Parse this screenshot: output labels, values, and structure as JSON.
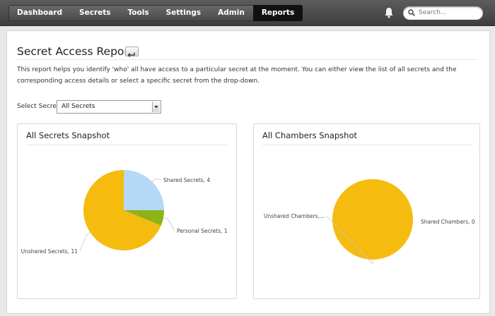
{
  "nav": {
    "items": [
      {
        "label": "Dashboard",
        "active": false
      },
      {
        "label": "Secrets",
        "active": false
      },
      {
        "label": "Tools",
        "active": false
      },
      {
        "label": "Settings",
        "active": false
      },
      {
        "label": "Admin",
        "active": false
      },
      {
        "label": "Reports",
        "active": true
      }
    ],
    "notifications_icon": "bell-icon",
    "search_placeholder": "Search..."
  },
  "page": {
    "title": "Secret Access Report",
    "back_icon": "back-arrow-icon",
    "description": "This report helps you identify 'who' all have access to a particular secret at the moment. You can either view the list of all secrets and the corresponding access details or select a specific secret from the drop-down.",
    "select_label": "Select Secret",
    "select_value": "All Secrets"
  },
  "panels": {
    "secrets_title": "All Secrets Snapshot",
    "chambers_title": "All Chambers Snapshot"
  },
  "colors": {
    "shared": "#b5d8f7",
    "personal": "#8db317",
    "unshared": "#f5bb0f",
    "nav_active": "#111111"
  },
  "chart_data": [
    {
      "type": "pie",
      "title": "All Secrets Snapshot",
      "slices": [
        {
          "label": "Shared Secrets, 4",
          "value": 4,
          "color": "#b5d8f7"
        },
        {
          "label": "Personal Secrets, 1",
          "value": 1,
          "color": "#8db317"
        },
        {
          "label": "Unshared Secrets, 11",
          "value": 11,
          "color": "#f5bb0f"
        }
      ]
    },
    {
      "type": "pie",
      "title": "All Chambers Snapshot",
      "slices": [
        {
          "label": "Shared Chambers, 0",
          "value": 0,
          "color": "#b5d8f7"
        },
        {
          "label": "Unshared Chambers,...",
          "value": 1,
          "color": "#f5bb0f"
        }
      ]
    }
  ]
}
